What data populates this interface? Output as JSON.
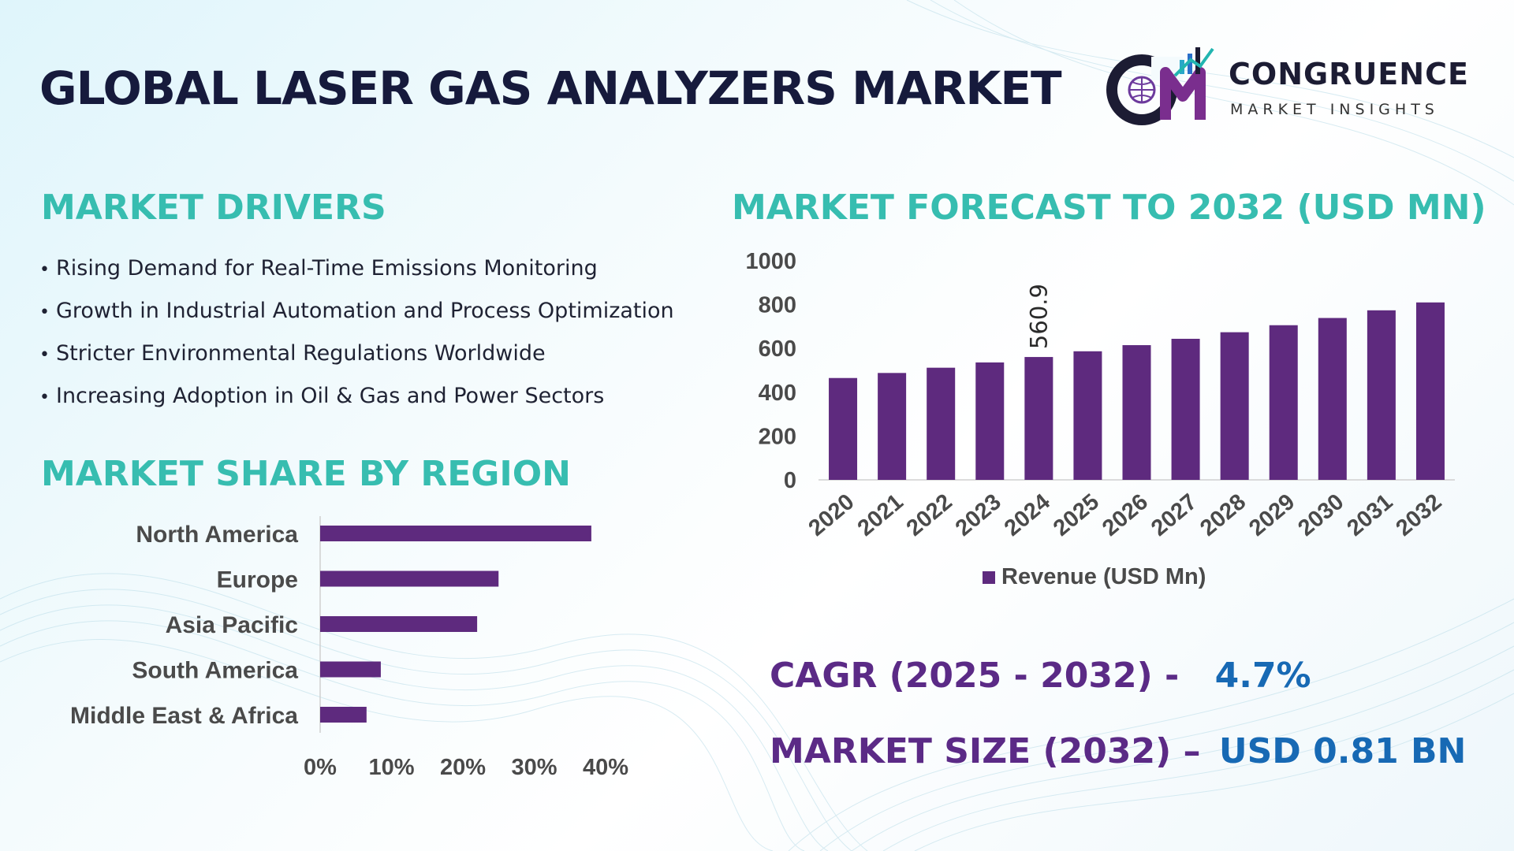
{
  "header": {
    "title": "GLOBAL LASER GAS ANALYZERS MARKET",
    "logo_name": "CONGRUENCE",
    "logo_sub": "MARKET INSIGHTS"
  },
  "drivers": {
    "title": "MARKET DRIVERS",
    "items": [
      "Rising Demand for Real-Time Emissions Monitoring",
      "Growth in Industrial Automation and Process Optimization",
      "Stricter Environmental Regulations Worldwide",
      "Increasing Adoption in Oil & Gas and Power Sectors"
    ]
  },
  "forecast": {
    "title": "MARKET FORECAST TO 2032 (USD MN)"
  },
  "region": {
    "title": "MARKET SHARE BY REGION"
  },
  "stats": {
    "cagr_label": "CAGR (2025 - 2032) -",
    "cagr_value": "4.7%",
    "size_label": "MARKET SIZE (2032) –",
    "size_value": "USD 0.81 BN"
  },
  "colors": {
    "bar": "#5e2a7e",
    "accent": "#37bdb0",
    "value_blue": "#1769b4"
  },
  "chart_data": [
    {
      "type": "bar",
      "title": "MARKET FORECAST TO 2032 (USD MN)",
      "categories": [
        "2020",
        "2021",
        "2022",
        "2023",
        "2024",
        "2025",
        "2026",
        "2027",
        "2028",
        "2029",
        "2030",
        "2031",
        "2032"
      ],
      "series": [
        {
          "name": "Revenue (USD Mn)",
          "values": [
            465,
            488,
            512,
            536,
            560.9,
            587,
            615,
            644,
            674,
            706,
            739,
            774,
            810
          ]
        }
      ],
      "data_labels": [
        {
          "category": "2024",
          "text": "560.9"
        }
      ],
      "ylim": [
        0,
        1000
      ],
      "yticks": [
        "0",
        "200",
        "400",
        "600",
        "800",
        "1000"
      ],
      "legend": "bottom",
      "grid": false
    },
    {
      "type": "bar",
      "orientation": "horizontal",
      "title": "MARKET SHARE BY REGION",
      "categories": [
        "North America",
        "Europe",
        "Asia Pacific",
        "South America",
        "Middle East & Africa"
      ],
      "values": [
        38,
        25,
        22,
        8.5,
        6.5
      ],
      "xlim": [
        0,
        40
      ],
      "xticks": [
        "0%",
        "10%",
        "20%",
        "30%",
        "40%"
      ],
      "grid": false
    }
  ]
}
